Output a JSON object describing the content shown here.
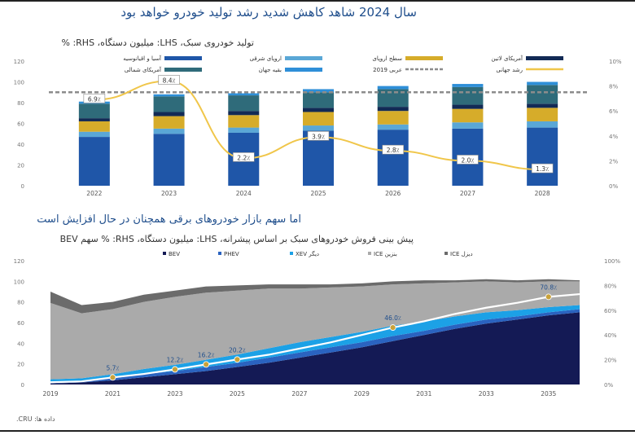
{
  "title": "سال 2024 شاهد کاهش شدید رشد تولید خودرو خواهد بود",
  "source": "داده ها: CRU.",
  "chart_data": [
    {
      "type": "bar",
      "subtitle": "تولید خودروی سبک، LHS: میلیون دستگاه، RHS: %",
      "categories": [
        "2022",
        "2023",
        "2024",
        "2025",
        "2026",
        "2027",
        "2028"
      ],
      "stacked": true,
      "ylim": [
        0,
        120
      ],
      "yticks": [
        "0",
        "20",
        "40",
        "60",
        "80",
        "100",
        "120"
      ],
      "y2lim": [
        0,
        10
      ],
      "y2ticks": [
        "0%",
        "2%",
        "4%",
        "6%",
        "8%",
        "10%"
      ],
      "series": [
        {
          "name": "آسیا و اقیانوسیه",
          "color": "#1f56a8",
          "values": [
            47,
            50,
            51,
            53,
            54,
            55,
            56
          ]
        },
        {
          "name": "اروپای شرقی",
          "color": "#5aa7d6",
          "values": [
            5,
            5,
            5,
            5,
            5,
            6,
            6
          ]
        },
        {
          "name": "سطح اروپای",
          "color": "#d6ac2a",
          "values": [
            10,
            12,
            12,
            13,
            13,
            13,
            13
          ]
        },
        {
          "name": "آمریکای لاتین",
          "color": "#122a55",
          "values": [
            3,
            4,
            4,
            4,
            4,
            4,
            4
          ]
        },
        {
          "name": "آمریکای شمالی",
          "color": "#2f6b7a",
          "values": [
            14,
            15,
            15,
            15,
            17,
            17,
            18
          ]
        },
        {
          "name": "بقیه جهان",
          "color": "#2e8fd8",
          "values": [
            2,
            2,
            2,
            3,
            3,
            3,
            3
          ]
        }
      ],
      "lines": [
        {
          "name": "عربی 2019",
          "color": "#8c8c8c",
          "dashed": true,
          "axis": "left",
          "values": [
            90,
            90,
            90,
            90,
            90,
            90,
            90
          ]
        },
        {
          "name": "رشد جهانی",
          "color": "#f0c64a",
          "axis": "right",
          "values": [
            6.9,
            8.4,
            2.2,
            3.9,
            2.8,
            2.0,
            1.3
          ],
          "labels": [
            "6.9٪",
            "8.4٪",
            "2.2٪",
            "3.9٪",
            "2.8٪",
            "2.0٪",
            "1.3٪"
          ]
        }
      ]
    },
    {
      "type": "area",
      "title": "اما سهم بازار خودروهای برقی همچنان در حال افزایش است",
      "subtitle": "پیش بینی فروش خودروهای سبک بر اساس پیشرانه، LHS: میلیون دستگاه، RHS: % سهم BEV",
      "x": [
        2019,
        2020,
        2021,
        2022,
        2023,
        2024,
        2025,
        2026,
        2027,
        2028,
        2029,
        2030,
        2031,
        2032,
        2033,
        2034,
        2035,
        2036
      ],
      "xticks": [
        "2019",
        "2021",
        "2023",
        "2025",
        "2027",
        "2029",
        "2031",
        "2033",
        "2035"
      ],
      "ylim": [
        0,
        120
      ],
      "yticks": [
        "0",
        "20",
        "40",
        "60",
        "80",
        "100",
        "120"
      ],
      "y2lim": [
        0,
        100
      ],
      "y2ticks": [
        "0%",
        "20%",
        "40%",
        "60%",
        "80%",
        "100%"
      ],
      "series": [
        {
          "name": "BEV",
          "color": "#141a55",
          "values": [
            1,
            2,
            4,
            7,
            10,
            13,
            17,
            21,
            26,
            31,
            36,
            42,
            48,
            54,
            59,
            63,
            67,
            70
          ]
        },
        {
          "name": "PHEV",
          "color": "#2a63c0",
          "values": [
            1,
            1,
            2,
            3,
            3,
            4,
            4,
            5,
            5,
            5,
            5,
            5,
            4,
            4,
            4,
            3,
            3,
            3
          ]
        },
        {
          "name": "XEV دیگر",
          "color": "#1ca1e6",
          "values": [
            3,
            3,
            4,
            5,
            6,
            7,
            8,
            9,
            10,
            10,
            10,
            10,
            9,
            8,
            7,
            6,
            5,
            4
          ]
        },
        {
          "name": "ICE بنزین",
          "color": "#aaaaaa",
          "values": [
            74,
            63,
            63,
            65,
            66,
            65,
            62,
            58,
            52,
            48,
            44,
            40,
            37,
            33,
            30,
            27,
            25,
            23
          ]
        },
        {
          "name": "ICE دیزل",
          "color": "#6b6b6b",
          "values": [
            11,
            8,
            7,
            7,
            6,
            6,
            5,
            4,
            4,
            3,
            3,
            3,
            3,
            2,
            2,
            2,
            2,
            1
          ]
        }
      ],
      "bev_share_line": {
        "color": "#ffffff",
        "values": [
          1.8,
          2.5,
          5.7,
          8.5,
          12.2,
          16.2,
          20.2,
          24,
          29,
          34,
          40,
          46.0,
          51,
          57,
          62,
          66,
          70.8,
          73
        ],
        "labels": [
          {
            "x": 2021,
            "text": "5.7٪"
          },
          {
            "x": 2023,
            "text": "12.2٪"
          },
          {
            "x": 2024,
            "text": "16.2٪"
          },
          {
            "x": 2025,
            "text": "20.2٪"
          },
          {
            "x": 2030,
            "text": "46.0٪"
          },
          {
            "x": 2035,
            "text": "70.8٪"
          }
        ]
      }
    }
  ]
}
